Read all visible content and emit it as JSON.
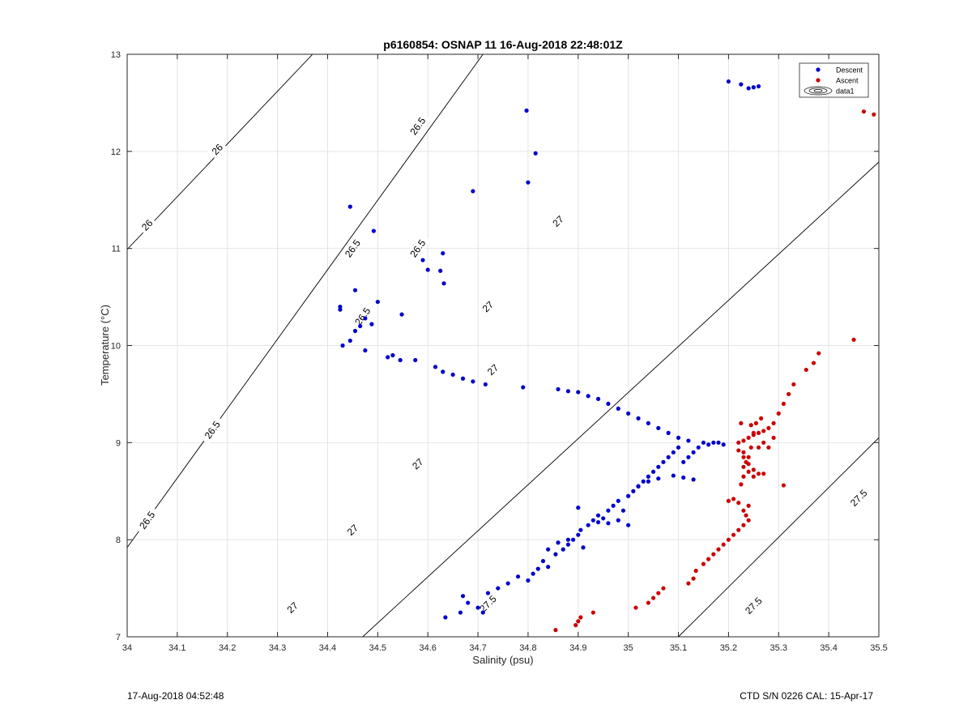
{
  "chart_data": {
    "type": "scatter",
    "title": "p6160854: OSNAP 11 16-Aug-2018 22:48:01Z",
    "xlabel": "Salinity (psu)",
    "ylabel": "Temperature (°C)",
    "xlim": [
      34,
      35.5
    ],
    "ylim": [
      7,
      13
    ],
    "xticks": [
      "34",
      "34.1",
      "34.2",
      "34.3",
      "34.4",
      "34.5",
      "34.6",
      "34.7",
      "34.8",
      "34.9",
      "35",
      "35.1",
      "35.2",
      "35.3",
      "35.4",
      "35.5"
    ],
    "yticks": [
      "7",
      "8",
      "9",
      "10",
      "11",
      "12",
      "13"
    ],
    "grid": true,
    "legend": {
      "placement": "top-right",
      "entries": [
        "Descent",
        "Ascent",
        "data1"
      ]
    },
    "colors": {
      "Descent": "#0000cc",
      "Ascent": "#cc0000",
      "contour": "#000000"
    },
    "contours": [
      {
        "level": "26",
        "points": [
          [
            34.0,
            10.99
          ],
          [
            34.37,
            13.0
          ]
        ],
        "labels": [
          [
            34.04,
            11.24
          ],
          [
            34.18,
            12.02
          ]
        ]
      },
      {
        "level": "26.5",
        "points": [
          [
            34.0,
            7.92
          ],
          [
            34.71,
            13.0
          ]
        ],
        "labels": [
          [
            34.04,
            8.2
          ],
          [
            34.17,
            9.13
          ],
          [
            34.47,
            10.3
          ],
          [
            34.45,
            11.0
          ],
          [
            34.58,
            11.0
          ],
          [
            34.58,
            12.26
          ]
        ]
      },
      {
        "level": "27",
        "points": [
          [
            34.47,
            7.0
          ],
          [
            35.5,
            11.89
          ]
        ],
        "labels": [
          [
            34.33,
            7.3
          ],
          [
            34.45,
            8.1
          ],
          [
            34.58,
            8.78
          ],
          [
            34.73,
            9.75
          ],
          [
            34.72,
            10.4
          ],
          [
            34.86,
            11.28
          ]
        ]
      },
      {
        "level": "27.5",
        "points": [
          [
            35.1,
            7.0
          ],
          [
            35.5,
            9.05
          ]
        ],
        "labels": [
          [
            34.72,
            7.34
          ],
          [
            35.25,
            7.32
          ],
          [
            35.46,
            8.43
          ]
        ]
      }
    ],
    "series": [
      {
        "name": "Descent",
        "points": [
          [
            34.635,
            7.2
          ],
          [
            34.665,
            7.25
          ],
          [
            34.67,
            7.42
          ],
          [
            34.68,
            7.35
          ],
          [
            34.7,
            7.3
          ],
          [
            34.71,
            7.25
          ],
          [
            34.72,
            7.45
          ],
          [
            34.74,
            7.5
          ],
          [
            34.76,
            7.55
          ],
          [
            34.78,
            7.62
          ],
          [
            34.8,
            7.58
          ],
          [
            34.81,
            7.65
          ],
          [
            34.82,
            7.7
          ],
          [
            34.83,
            7.78
          ],
          [
            34.84,
            7.72
          ],
          [
            34.855,
            7.85
          ],
          [
            34.87,
            7.9
          ],
          [
            34.88,
            7.95
          ],
          [
            34.89,
            8.0
          ],
          [
            34.9,
            8.05
          ],
          [
            34.905,
            8.1
          ],
          [
            34.91,
            7.92
          ],
          [
            34.92,
            8.15
          ],
          [
            34.93,
            8.2
          ],
          [
            34.94,
            8.25
          ],
          [
            34.95,
            8.22
          ],
          [
            34.96,
            8.3
          ],
          [
            34.97,
            8.35
          ],
          [
            34.98,
            8.4
          ],
          [
            34.99,
            8.3
          ],
          [
            35.0,
            8.45
          ],
          [
            35.01,
            8.5
          ],
          [
            35.02,
            8.55
          ],
          [
            35.03,
            8.6
          ],
          [
            35.04,
            8.65
          ],
          [
            35.05,
            8.7
          ],
          [
            35.06,
            8.75
          ],
          [
            35.07,
            8.8
          ],
          [
            35.08,
            8.85
          ],
          [
            35.09,
            8.9
          ],
          [
            35.1,
            8.95
          ],
          [
            35.11,
            8.8
          ],
          [
            35.12,
            8.85
          ],
          [
            35.13,
            8.9
          ],
          [
            35.14,
            8.95
          ],
          [
            35.15,
            9.0
          ],
          [
            35.16,
            8.98
          ],
          [
            35.17,
            9.0
          ],
          [
            35.18,
            9.0
          ],
          [
            35.19,
            8.98
          ],
          [
            35.12,
            9.02
          ],
          [
            35.1,
            9.05
          ],
          [
            35.08,
            9.1
          ],
          [
            35.06,
            9.15
          ],
          [
            35.04,
            9.2
          ],
          [
            35.02,
            9.25
          ],
          [
            35.0,
            9.3
          ],
          [
            34.98,
            9.35
          ],
          [
            34.96,
            9.4
          ],
          [
            34.94,
            9.45
          ],
          [
            34.92,
            9.48
          ],
          [
            34.9,
            9.52
          ],
          [
            34.88,
            9.53
          ],
          [
            34.86,
            9.55
          ],
          [
            34.79,
            9.57
          ],
          [
            34.715,
            9.6
          ],
          [
            34.69,
            9.63
          ],
          [
            34.67,
            9.66
          ],
          [
            34.65,
            9.7
          ],
          [
            34.63,
            9.73
          ],
          [
            34.615,
            9.78
          ],
          [
            34.575,
            9.85
          ],
          [
            34.545,
            9.85
          ],
          [
            34.53,
            9.9
          ],
          [
            34.52,
            9.88
          ],
          [
            34.475,
            9.95
          ],
          [
            34.43,
            10.0
          ],
          [
            34.445,
            10.05
          ],
          [
            34.455,
            10.15
          ],
          [
            34.465,
            10.2
          ],
          [
            34.475,
            10.28
          ],
          [
            34.488,
            10.22
          ],
          [
            34.425,
            10.37
          ],
          [
            34.425,
            10.4
          ],
          [
            34.455,
            10.57
          ],
          [
            34.5,
            10.45
          ],
          [
            34.548,
            10.32
          ],
          [
            34.59,
            10.88
          ],
          [
            34.6,
            10.78
          ],
          [
            34.625,
            10.77
          ],
          [
            34.63,
            10.95
          ],
          [
            34.632,
            10.64
          ],
          [
            34.445,
            11.43
          ],
          [
            34.492,
            11.18
          ],
          [
            34.69,
            11.59
          ],
          [
            34.797,
            12.42
          ],
          [
            34.815,
            11.98
          ],
          [
            34.8,
            11.68
          ],
          [
            35.2,
            12.72
          ],
          [
            35.225,
            12.69
          ],
          [
            35.24,
            12.65
          ],
          [
            35.25,
            12.66
          ],
          [
            35.26,
            12.67
          ],
          [
            35.11,
            8.64
          ],
          [
            35.13,
            8.62
          ],
          [
            35.09,
            8.66
          ],
          [
            35.06,
            8.63
          ],
          [
            35.04,
            8.6
          ],
          [
            35.02,
            8.55
          ],
          [
            35.0,
            8.15
          ],
          [
            34.98,
            8.2
          ],
          [
            34.96,
            8.17
          ],
          [
            34.94,
            8.18
          ],
          [
            34.9,
            8.33
          ],
          [
            34.88,
            8.0
          ],
          [
            34.86,
            7.97
          ],
          [
            34.84,
            7.9
          ]
        ]
      },
      {
        "name": "Ascent",
        "points": [
          [
            34.855,
            7.07
          ],
          [
            34.895,
            7.12
          ],
          [
            34.9,
            7.16
          ],
          [
            34.905,
            7.2
          ],
          [
            34.93,
            7.25
          ],
          [
            35.015,
            7.3
          ],
          [
            35.04,
            7.35
          ],
          [
            35.05,
            7.4
          ],
          [
            35.06,
            7.45
          ],
          [
            35.07,
            7.5
          ],
          [
            35.12,
            7.55
          ],
          [
            35.13,
            7.6
          ],
          [
            35.135,
            7.68
          ],
          [
            35.15,
            7.75
          ],
          [
            35.16,
            7.8
          ],
          [
            35.17,
            7.85
          ],
          [
            35.18,
            7.9
          ],
          [
            35.19,
            7.95
          ],
          [
            35.2,
            8.0
          ],
          [
            35.21,
            8.05
          ],
          [
            35.22,
            8.1
          ],
          [
            35.23,
            8.15
          ],
          [
            35.24,
            8.2
          ],
          [
            35.235,
            8.25
          ],
          [
            35.23,
            8.3
          ],
          [
            35.24,
            8.35
          ],
          [
            35.2,
            8.4
          ],
          [
            35.21,
            8.42
          ],
          [
            35.22,
            8.38
          ],
          [
            35.225,
            8.57
          ],
          [
            35.23,
            8.65
          ],
          [
            35.24,
            8.7
          ],
          [
            35.25,
            8.72
          ],
          [
            35.26,
            8.68
          ],
          [
            35.23,
            8.75
          ],
          [
            35.235,
            8.8
          ],
          [
            35.24,
            8.85
          ],
          [
            35.23,
            8.9
          ],
          [
            35.22,
            8.92
          ],
          [
            35.245,
            8.95
          ],
          [
            35.22,
            9.0
          ],
          [
            35.23,
            9.02
          ],
          [
            35.24,
            9.05
          ],
          [
            35.25,
            9.08
          ],
          [
            35.26,
            9.1
          ],
          [
            35.27,
            9.12
          ],
          [
            35.28,
            9.15
          ],
          [
            35.29,
            9.2
          ],
          [
            35.3,
            9.3
          ],
          [
            35.31,
            9.4
          ],
          [
            35.32,
            9.5
          ],
          [
            35.33,
            9.6
          ],
          [
            35.355,
            9.75
          ],
          [
            35.37,
            9.82
          ],
          [
            35.38,
            9.92
          ],
          [
            35.45,
            10.06
          ],
          [
            35.47,
            12.41
          ],
          [
            35.49,
            12.38
          ],
          [
            35.31,
            8.56
          ],
          [
            35.27,
            9.0
          ],
          [
            35.26,
            8.95
          ],
          [
            35.25,
            9.1
          ],
          [
            35.24,
            8.78
          ],
          [
            35.23,
            8.85
          ],
          [
            35.25,
            8.65
          ],
          [
            35.27,
            8.68
          ],
          [
            35.28,
            8.95
          ],
          [
            35.29,
            9.05
          ],
          [
            35.255,
            9.2
          ],
          [
            35.245,
            9.18
          ],
          [
            35.265,
            9.25
          ],
          [
            35.225,
            9.2
          ]
        ]
      }
    ]
  },
  "footer": {
    "timestamp": "17-Aug-2018 04:52:48",
    "calibration": "CTD S/N 0226  CAL: 15-Apr-17"
  }
}
